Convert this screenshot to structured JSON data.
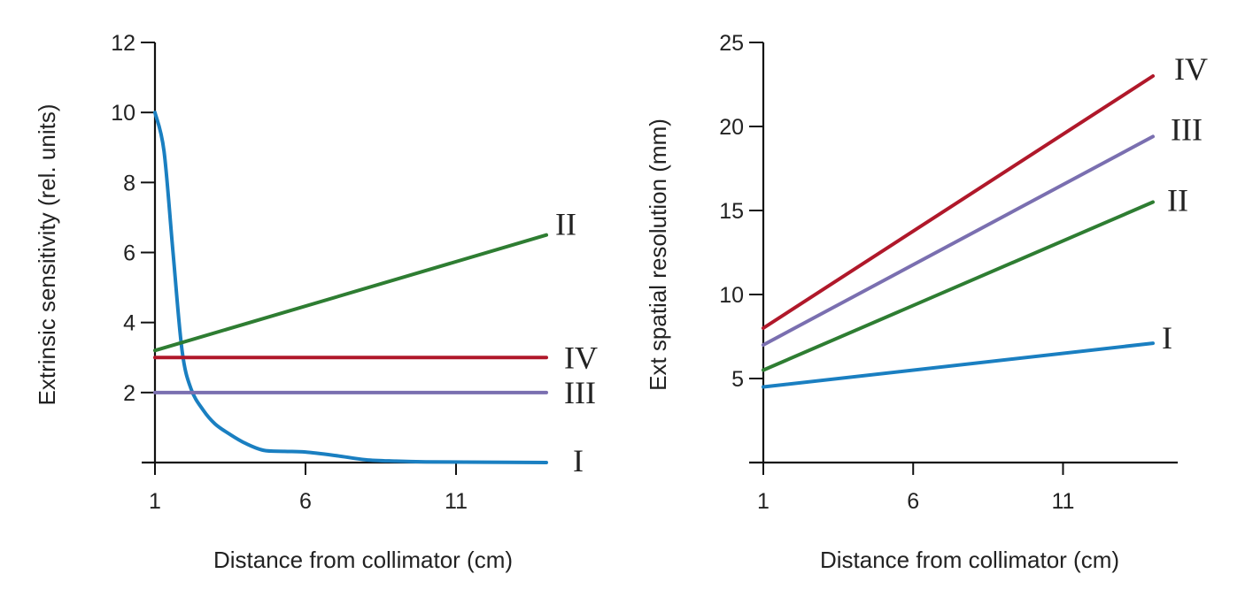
{
  "colors": {
    "I": "#1a7fc1",
    "II": "#2e7d32",
    "III": "#7a6fb0",
    "IV": "#b0182a",
    "axis": "#111111"
  },
  "chart_data": [
    {
      "type": "line",
      "title": "",
      "xlabel": "Distance from collimator (cm)",
      "ylabel": "Extrinsic sensitivity (rel. units)",
      "xlim": [
        1,
        15
      ],
      "ylim": [
        0,
        12
      ],
      "xticks": [
        1,
        6,
        11
      ],
      "yticks": [
        2,
        4,
        6,
        8,
        10,
        12
      ],
      "grid": false,
      "series": [
        {
          "name": "I",
          "color": "#1a7fc1",
          "x": [
            1,
            1.3,
            1.6,
            1.9,
            2.2,
            2.6,
            3.0,
            3.5,
            4.0,
            4.6,
            5.3,
            6.0,
            7.0,
            8.0,
            9.0,
            10.0,
            12.0,
            14.0
          ],
          "y": [
            10.0,
            8.9,
            6.0,
            3.2,
            2.1,
            1.5,
            1.1,
            0.8,
            0.55,
            0.35,
            0.32,
            0.3,
            0.2,
            0.08,
            0.04,
            0.02,
            0.01,
            0.0
          ]
        },
        {
          "name": "II",
          "color": "#2e7d32",
          "x": [
            1,
            14
          ],
          "y": [
            3.2,
            6.5
          ]
        },
        {
          "name": "III",
          "color": "#7a6fb0",
          "x": [
            1,
            14
          ],
          "y": [
            2.0,
            2.0
          ]
        },
        {
          "name": "IV",
          "color": "#b0182a",
          "x": [
            1,
            14
          ],
          "y": [
            3.0,
            3.0
          ]
        }
      ]
    },
    {
      "type": "line",
      "title": "",
      "xlabel": "Distance from collimator (cm)",
      "ylabel": "Ext spatial resolution (mm)",
      "xlim": [
        1,
        15
      ],
      "ylim": [
        0,
        25
      ],
      "xticks": [
        1,
        6,
        11
      ],
      "yticks": [
        5,
        10,
        15,
        20,
        25
      ],
      "grid": false,
      "series": [
        {
          "name": "I",
          "color": "#1a7fc1",
          "x": [
            1,
            14
          ],
          "y": [
            4.5,
            7.1
          ]
        },
        {
          "name": "II",
          "color": "#2e7d32",
          "x": [
            1,
            14
          ],
          "y": [
            5.5,
            15.5
          ]
        },
        {
          "name": "III",
          "color": "#7a6fb0",
          "x": [
            1,
            14
          ],
          "y": [
            7.0,
            19.4
          ]
        },
        {
          "name": "IV",
          "color": "#b0182a",
          "x": [
            1,
            14
          ],
          "y": [
            8.0,
            23.0
          ]
        }
      ]
    }
  ]
}
